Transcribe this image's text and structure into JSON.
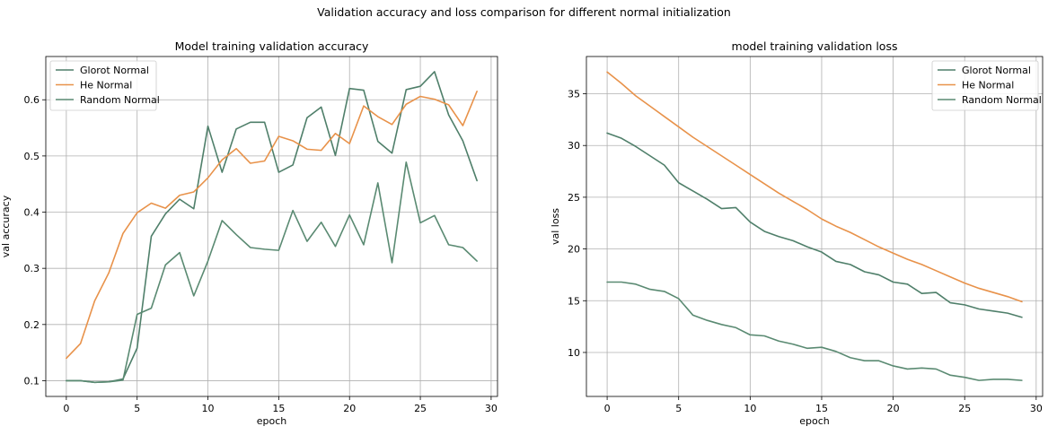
{
  "figure": {
    "suptitle": "Validation accuracy and loss comparison for different normal initialization"
  },
  "colors": {
    "glorot": "#4f7f6a",
    "he": "#e8924a",
    "random": "#5a8a72"
  },
  "chart_data": [
    {
      "type": "line",
      "title": "Model training validation accuracy",
      "xlabel": "epoch",
      "ylabel": "val accuracy",
      "xlim": [
        -1.45,
        30.45
      ],
      "ylim": [
        0.072,
        0.677
      ],
      "xticks": [
        0,
        5,
        10,
        15,
        20,
        25,
        30
      ],
      "yticks": [
        0.1,
        0.2,
        0.3,
        0.4,
        0.5,
        0.6
      ],
      "ytick_labels": [
        "0.1",
        "0.2",
        "0.3",
        "0.4",
        "0.5",
        "0.6"
      ],
      "grid": true,
      "legend_position": "upper-left",
      "x": [
        0,
        1,
        2,
        3,
        4,
        5,
        6,
        7,
        8,
        9,
        10,
        11,
        12,
        13,
        14,
        15,
        16,
        17,
        18,
        19,
        20,
        21,
        22,
        23,
        24,
        25,
        26,
        27,
        28,
        29
      ],
      "series": [
        {
          "name": "Glorot Normal",
          "color_key": "glorot",
          "values": [
            0.1,
            0.1,
            0.097,
            0.098,
            0.103,
            0.158,
            0.357,
            0.397,
            0.423,
            0.406,
            0.553,
            0.471,
            0.548,
            0.56,
            0.56,
            0.471,
            0.484,
            0.568,
            0.587,
            0.501,
            0.62,
            0.617,
            0.526,
            0.505,
            0.618,
            0.624,
            0.65,
            0.573,
            0.527,
            0.456
          ]
        },
        {
          "name": "He Normal",
          "color_key": "he",
          "values": [
            0.14,
            0.166,
            0.242,
            0.292,
            0.362,
            0.399,
            0.416,
            0.407,
            0.43,
            0.436,
            0.461,
            0.493,
            0.513,
            0.487,
            0.491,
            0.535,
            0.527,
            0.512,
            0.51,
            0.54,
            0.522,
            0.589,
            0.57,
            0.556,
            0.592,
            0.606,
            0.601,
            0.591,
            0.554,
            0.615
          ]
        },
        {
          "name": "Random Normal",
          "color_key": "random",
          "values": [
            0.1,
            0.1,
            0.097,
            0.098,
            0.101,
            0.218,
            0.229,
            0.306,
            0.328,
            0.251,
            0.313,
            0.385,
            0.36,
            0.337,
            0.334,
            0.332,
            0.403,
            0.348,
            0.382,
            0.339,
            0.395,
            0.342,
            0.452,
            0.31,
            0.489,
            0.381,
            0.394,
            0.342,
            0.337,
            0.313
          ]
        }
      ]
    },
    {
      "type": "line",
      "title": "model training validation loss",
      "xlabel": "epoch",
      "ylabel": "val loss",
      "xlim": [
        -1.45,
        30.45
      ],
      "ylim": [
        5.75,
        38.6
      ],
      "xticks": [
        0,
        5,
        10,
        15,
        20,
        25,
        30
      ],
      "yticks": [
        10,
        15,
        20,
        25,
        30,
        35
      ],
      "ytick_labels": [
        "10",
        "15",
        "20",
        "25",
        "30",
        "35"
      ],
      "grid": true,
      "legend_position": "upper-right",
      "x": [
        0,
        1,
        2,
        3,
        4,
        5,
        6,
        7,
        8,
        9,
        10,
        11,
        12,
        13,
        14,
        15,
        16,
        17,
        18,
        19,
        20,
        21,
        22,
        23,
        24,
        25,
        26,
        27,
        28,
        29
      ],
      "series": [
        {
          "name": "Glorot Normal",
          "color_key": "glorot",
          "values": [
            31.2,
            30.7,
            29.9,
            29.0,
            28.1,
            26.4,
            25.6,
            24.8,
            23.9,
            24.0,
            22.6,
            21.7,
            21.2,
            20.8,
            20.2,
            19.7,
            18.8,
            18.5,
            17.8,
            17.5,
            16.8,
            16.6,
            15.7,
            15.8,
            14.8,
            14.6,
            14.2,
            14.0,
            13.8,
            13.4
          ]
        },
        {
          "name": "He Normal",
          "color_key": "he",
          "values": [
            37.1,
            36.0,
            34.8,
            33.8,
            32.8,
            31.8,
            30.8,
            29.9,
            29.0,
            28.1,
            27.2,
            26.3,
            25.4,
            24.6,
            23.8,
            22.9,
            22.2,
            21.6,
            20.9,
            20.2,
            19.6,
            19.0,
            18.5,
            17.9,
            17.3,
            16.7,
            16.2,
            15.8,
            15.4,
            14.9
          ]
        },
        {
          "name": "Random Normal",
          "color_key": "random",
          "values": [
            16.8,
            16.8,
            16.6,
            16.1,
            15.9,
            15.2,
            13.6,
            13.1,
            12.7,
            12.4,
            11.7,
            11.6,
            11.1,
            10.8,
            10.4,
            10.5,
            10.1,
            9.5,
            9.2,
            9.2,
            8.7,
            8.4,
            8.5,
            8.4,
            7.8,
            7.6,
            7.3,
            7.4,
            7.4,
            7.3
          ]
        }
      ]
    }
  ]
}
